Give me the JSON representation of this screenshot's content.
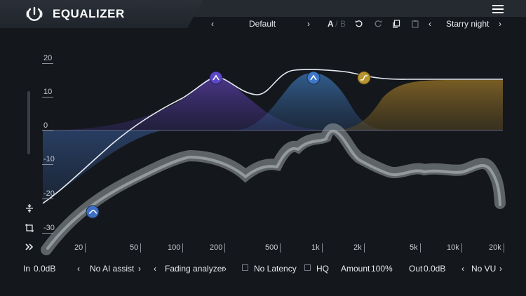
{
  "app": {
    "title": "EQUALIZER"
  },
  "preset": {
    "prev": "‹",
    "name": "Default",
    "next": "›",
    "a_label": "A",
    "b_label": "B",
    "sep": "/",
    "theme_prev": "‹",
    "theme": "Starry night",
    "theme_next": "›"
  },
  "graph": {
    "y_labels": [
      "20",
      "10",
      "0",
      "-10",
      "-20",
      "-30"
    ],
    "x_labels": [
      "20",
      "50",
      "100",
      "200",
      "500",
      "1k",
      "2k",
      "5k",
      "10k",
      "20k"
    ],
    "bands": [
      {
        "type": "low-shelf",
        "color": "#3d6fc4"
      },
      {
        "type": "bell",
        "color": "#5a48c8"
      },
      {
        "type": "bell",
        "color": "#3d78c8"
      },
      {
        "type": "high-shelf",
        "color": "#b8952e"
      }
    ]
  },
  "bottom": {
    "in_label": "In",
    "in_value": "0.0dB",
    "ai_prev": "‹",
    "ai": "No AI assist",
    "ai_next": "›",
    "an_prev": "‹",
    "analyzer": "Fading analyzer",
    "an_next": "›",
    "latency": "No Latency",
    "hq": "HQ",
    "amount_label": "Amount",
    "amount_value": "100%",
    "out_label": "Out",
    "out_value": "0.0dB",
    "vu_prev": "‹",
    "vu": "No VU",
    "vu_next": "›"
  }
}
